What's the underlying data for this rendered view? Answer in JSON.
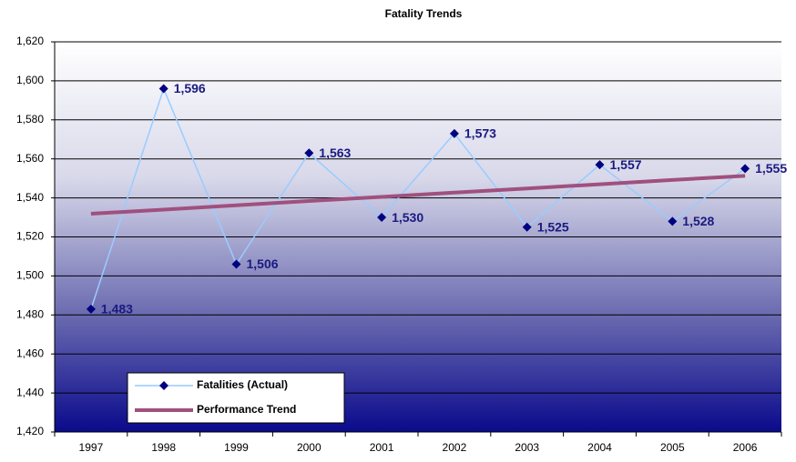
{
  "chart_data": {
    "type": "line",
    "title": "Fatality Trends",
    "categories": [
      "1997",
      "1998",
      "1999",
      "2000",
      "2001",
      "2002",
      "2003",
      "2004",
      "2005",
      "2006"
    ],
    "series": [
      {
        "name": "Fatalities (Actual)",
        "color": "#99ccff",
        "marker_color": "#000080",
        "values": [
          1483,
          1596,
          1506,
          1563,
          1530,
          1573,
          1525,
          1557,
          1528,
          1555
        ],
        "value_labels": [
          "1,483",
          "1,596",
          "1,506",
          "1,563",
          "1,530",
          "1,573",
          "1,525",
          "1,557",
          "1,528",
          "1,555"
        ]
      },
      {
        "name": "Performance Trend",
        "color": "#a0507e",
        "values": [
          1531.9,
          1534.0,
          1536.2,
          1538.4,
          1540.5,
          1542.7,
          1544.8,
          1547.0,
          1549.2,
          1551.3
        ]
      }
    ],
    "ylim": [
      1420,
      1620
    ],
    "yticks": [
      {
        "value": 1420,
        "label": "1,420"
      },
      {
        "value": 1440,
        "label": "1,440"
      },
      {
        "value": 1460,
        "label": "1,460"
      },
      {
        "value": 1480,
        "label": "1,480"
      },
      {
        "value": 1500,
        "label": "1,500"
      },
      {
        "value": 1520,
        "label": "1,520"
      },
      {
        "value": 1540,
        "label": "1,540"
      },
      {
        "value": 1560,
        "label": "1,560"
      },
      {
        "value": 1580,
        "label": "1,580"
      },
      {
        "value": 1600,
        "label": "1,600"
      },
      {
        "value": 1620,
        "label": "1,620"
      }
    ],
    "grid": true,
    "legend": "lower left"
  }
}
